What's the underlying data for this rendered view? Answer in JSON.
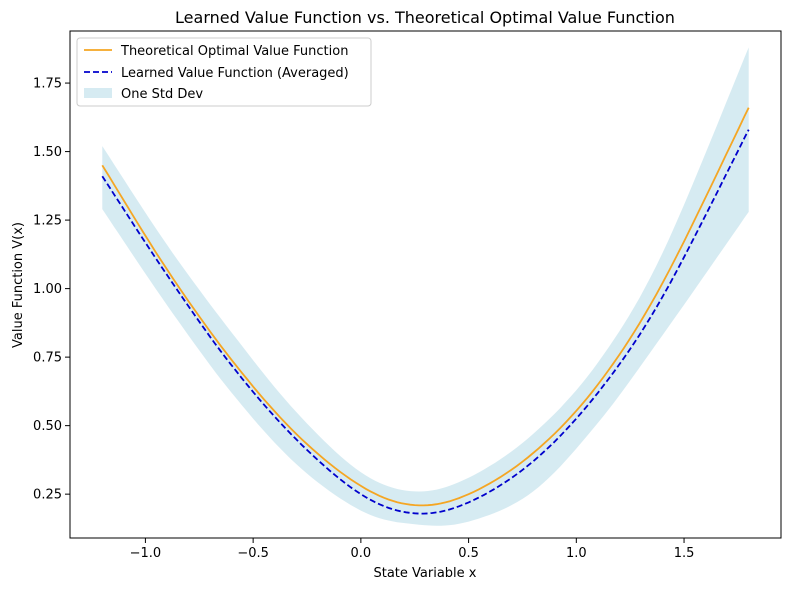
{
  "chart_data": {
    "type": "line",
    "title": "Learned Value Function vs. Theoretical Optimal Value Function",
    "xlabel": "State Variable x",
    "ylabel": "Value Function V(x)",
    "xlim": [
      -1.35,
      1.95
    ],
    "ylim": [
      0.09,
      1.94
    ],
    "x_ticks": [
      -1.0,
      -0.5,
      0.0,
      0.5,
      1.0,
      1.5
    ],
    "x_tick_labels": [
      "−1.0",
      "−0.5",
      "0.0",
      "0.5",
      "1.0",
      "1.5"
    ],
    "y_ticks": [
      0.25,
      0.5,
      0.75,
      1.0,
      1.25,
      1.5,
      1.75
    ],
    "y_tick_labels": [
      "0.25",
      "0.50",
      "0.75",
      "1.00",
      "1.25",
      "1.50",
      "1.75"
    ],
    "legend_position": "top-left",
    "x": [
      -1.2,
      -0.9,
      -0.6,
      -0.3,
      0.0,
      0.25,
      0.5,
      0.8,
      1.1,
      1.4,
      1.8
    ],
    "series": [
      {
        "name": "Theoretical Optimal Value Function",
        "style": "solid",
        "color": "#f5a623",
        "values": [
          1.45,
          1.07,
          0.74,
          0.47,
          0.28,
          0.21,
          0.25,
          0.4,
          0.65,
          1.02,
          1.66
        ]
      },
      {
        "name": "Learned Value Function (Averaged)",
        "style": "dashed",
        "color": "#0000cc",
        "values": [
          1.41,
          1.05,
          0.72,
          0.45,
          0.25,
          0.18,
          0.22,
          0.37,
          0.62,
          0.97,
          1.58
        ]
      }
    ],
    "band": {
      "name": "One Std Dev",
      "color": "#add8e6",
      "upper": [
        1.52,
        1.16,
        0.84,
        0.55,
        0.33,
        0.26,
        0.31,
        0.47,
        0.73,
        1.13,
        1.88
      ],
      "lower": [
        1.29,
        0.94,
        0.62,
        0.36,
        0.19,
        0.14,
        0.15,
        0.26,
        0.51,
        0.83,
        1.28
      ]
    }
  }
}
